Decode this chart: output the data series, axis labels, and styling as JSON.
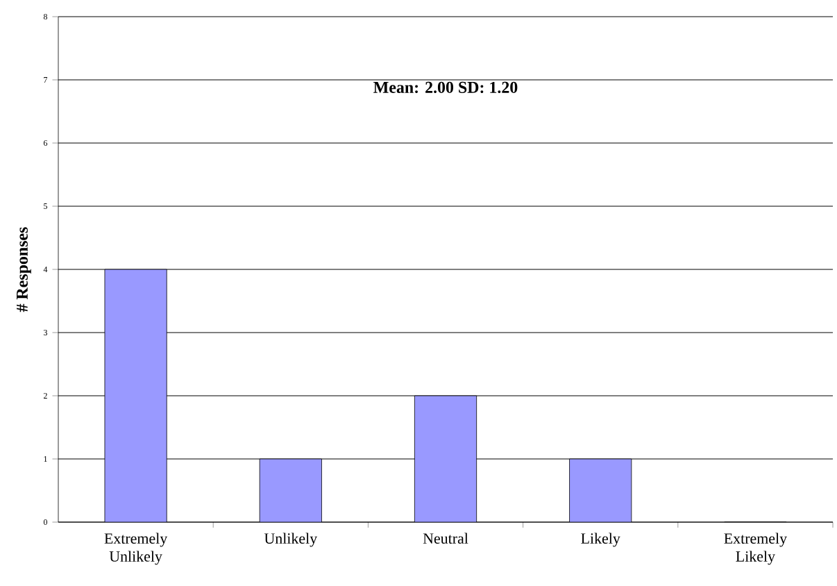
{
  "chart_data": {
    "type": "bar",
    "ylabel": "# Responses",
    "annotations": [
      "**Mean: 2.00    SD: 1.20**"
    ],
    "categories": [
      "Extremely Unlikely",
      "Unlikely",
      "Neutral",
      "Likely",
      "Extremely Likely"
    ],
    "values": [
      4,
      1,
      2,
      1,
      0
    ],
    "color": "#9999ff",
    "ylim": [
      0,
      8
    ],
    "yticks": [
      0,
      1,
      2,
      3,
      4,
      5,
      6,
      7,
      8
    ],
    "grid": "y"
  }
}
